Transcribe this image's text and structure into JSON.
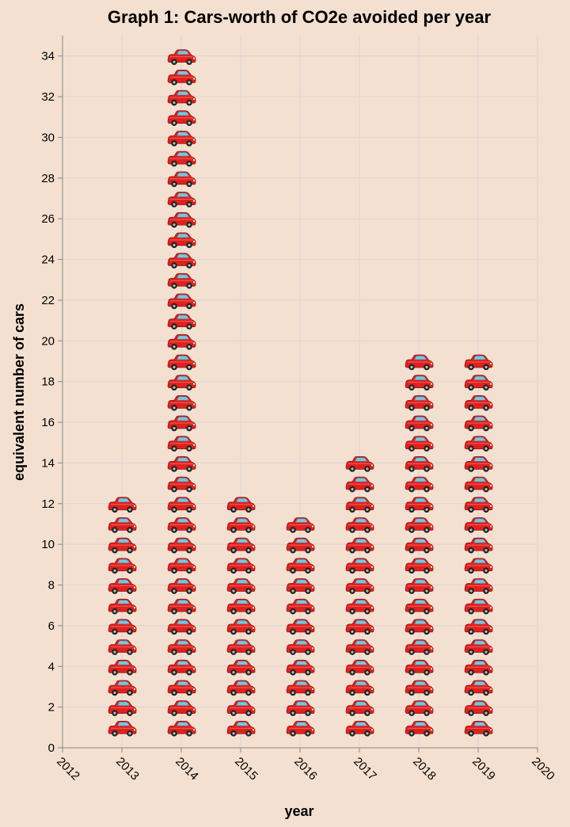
{
  "chart_data": {
    "type": "bar",
    "title": "Graph 1: Cars-worth of CO2e avoided per year",
    "xlabel": "year",
    "ylabel": "equivalent number of cars",
    "x_ticks": [
      "2012",
      "2013",
      "2014",
      "2015",
      "2016",
      "2017",
      "2018",
      "2019",
      "2020"
    ],
    "y_ticks": [
      "0",
      "2",
      "4",
      "6",
      "8",
      "10",
      "12",
      "14",
      "16",
      "18",
      "20",
      "22",
      "24",
      "26",
      "28",
      "30",
      "32",
      "34"
    ],
    "categories": [
      "2013",
      "2014",
      "2015",
      "2016",
      "2017",
      "2018",
      "2019"
    ],
    "values": [
      12,
      34,
      12,
      11,
      14,
      19,
      19
    ],
    "xlim": [
      2012,
      2020
    ],
    "ylim": [
      0,
      35
    ],
    "grid": true,
    "mark": "stacked car icons, one per car",
    "colors": {
      "background": "#f3e0d0",
      "car_body": "#e0201e",
      "car_window": "#7cc4de"
    }
  }
}
